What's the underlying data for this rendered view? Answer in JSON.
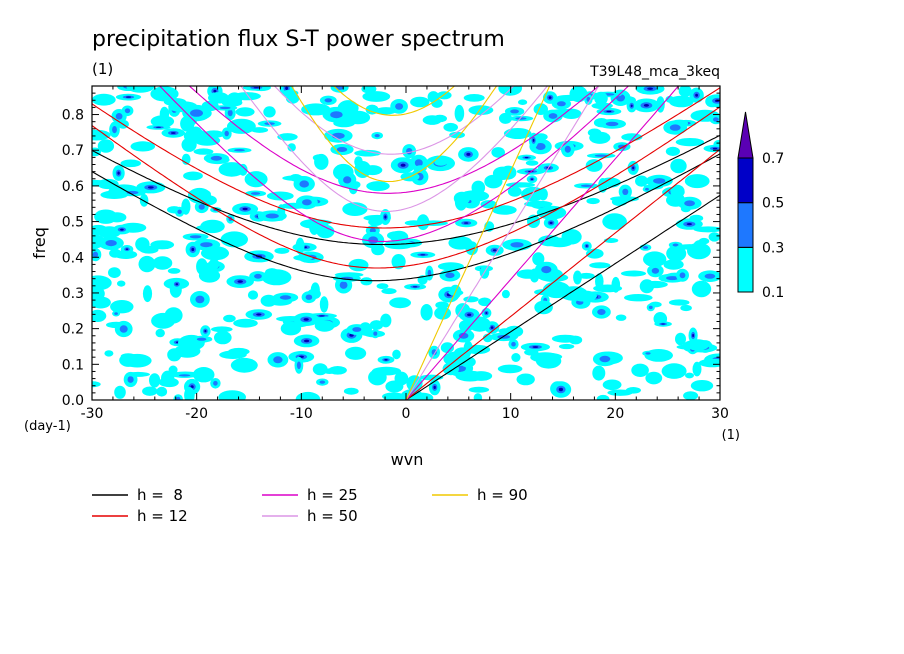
{
  "chart_data": {
    "type": "heatmap",
    "title": "precipitation flux S-T power spectrum",
    "subtitle_left": "(1)",
    "subtitle_right": "T39L48_mca_3keq",
    "xlabel": "wvn",
    "ylabel": "freq",
    "x_unit": "(1)",
    "y_unit": "(day-1)",
    "xlim": [
      -30,
      30
    ],
    "ylim": [
      0,
      0.88
    ],
    "x_ticks": [
      -30,
      -20,
      -10,
      0,
      10,
      20,
      30
    ],
    "x_tick_labels": [
      "-30",
      "-20",
      "-10",
      "0",
      "10",
      "20",
      "30"
    ],
    "y_ticks": [
      0,
      0.1,
      0.2,
      0.3,
      0.4,
      0.5,
      0.6,
      0.7,
      0.8
    ],
    "y_tick_labels": [
      "0.0",
      "0.1",
      "0.2",
      "0.3",
      "0.4",
      "0.5",
      "0.6",
      "0.7",
      "0.8"
    ],
    "colorbar": {
      "levels": [
        0.1,
        0.3,
        0.5,
        0.7
      ],
      "level_labels": [
        "0.1",
        "0.3",
        "0.5",
        "0.7"
      ],
      "colors": [
        "#00ffff",
        "#1e78ff",
        "#0000c8",
        "#5a00b4"
      ],
      "extend": "max"
    },
    "field_fill_colors": [
      "#00ffff",
      "#1e78ff",
      "#0000b4"
    ],
    "dispersion_curves": [
      {
        "label": "h =  8",
        "h": 8,
        "color": "#000000"
      },
      {
        "label": "h = 12",
        "h": 12,
        "color": "#e60000"
      },
      {
        "label": "h = 25",
        "h": 25,
        "color": "#dc00c8"
      },
      {
        "label": "h = 50",
        "h": 50,
        "color": "#dc96e6"
      },
      {
        "label": "h = 90",
        "h": 90,
        "color": "#f0c800"
      }
    ],
    "legend_placement": "bottom"
  }
}
